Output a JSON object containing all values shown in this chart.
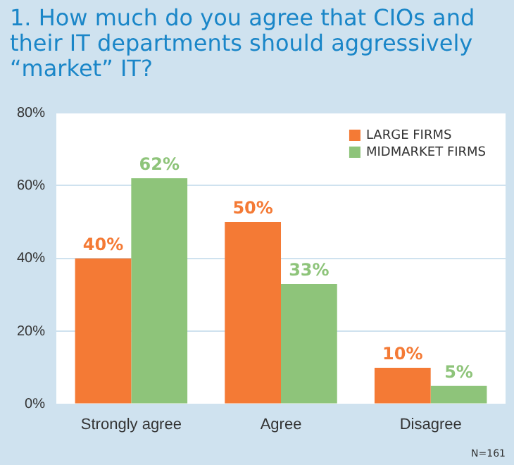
{
  "chart_data": {
    "type": "bar",
    "title": "1. How much do you agree that CIOs and their IT departments should aggressively “market” IT?",
    "categories": [
      "Strongly agree",
      "Agree",
      "Disagree"
    ],
    "series": [
      {
        "name": "LARGE FIRMS",
        "color": "#f47a35",
        "values": [
          40,
          50,
          10
        ],
        "value_labels": [
          "40%",
          "50%",
          "10%"
        ]
      },
      {
        "name": "MIDMARKET FIRMS",
        "color": "#8ec47a",
        "values": [
          62,
          33,
          5
        ],
        "value_labels": [
          "62%",
          "33%",
          "5%"
        ]
      }
    ],
    "ylim": [
      0,
      80
    ],
    "yticks": [
      {
        "value": 0,
        "label": "0%"
      },
      {
        "value": 20,
        "label": "20%"
      },
      {
        "value": 40,
        "label": "40%"
      },
      {
        "value": 60,
        "label": "60%"
      },
      {
        "value": 80,
        "label": "80%"
      }
    ],
    "grid": "y",
    "legend": "top right",
    "annotations": [
      "N=161"
    ]
  }
}
